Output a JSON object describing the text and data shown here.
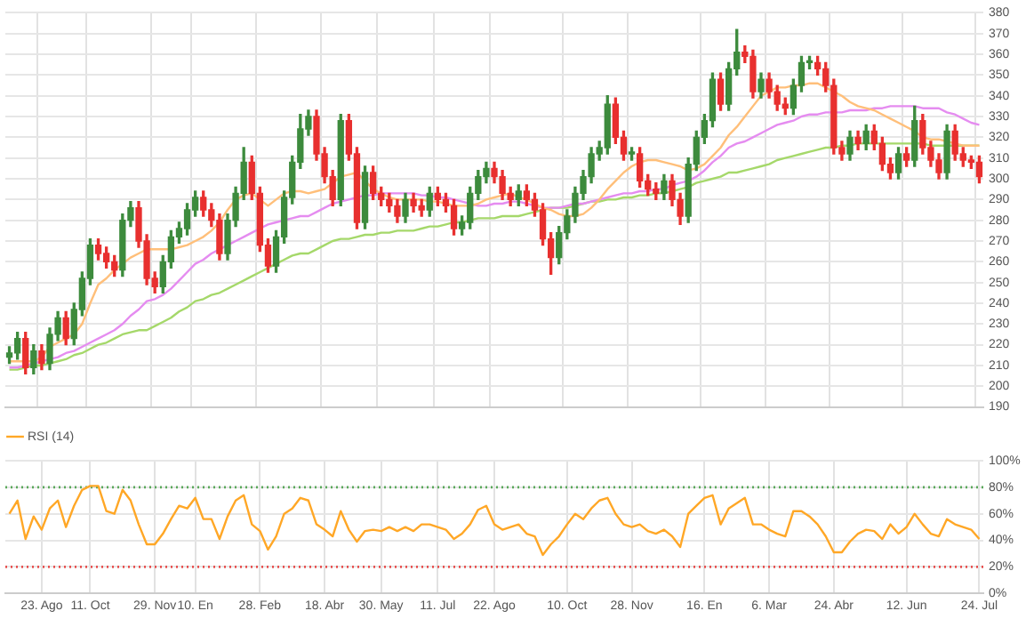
{
  "chart_data": [
    {
      "type": "candlestick",
      "tick_labels": "y",
      "grid": true,
      "marker": "none",
      "ylim": [
        190,
        380
      ],
      "yticks": [
        190,
        200,
        210,
        220,
        230,
        240,
        250,
        260,
        270,
        280,
        290,
        300,
        310,
        320,
        330,
        340,
        350,
        360,
        370,
        380
      ],
      "categories": [
        null,
        null,
        null,
        null,
        null,
        null,
        null,
        null,
        null,
        null,
        null,
        null,
        null,
        null,
        null,
        null,
        null,
        null,
        null,
        null,
        null,
        null,
        null,
        null,
        null,
        null,
        null,
        null,
        null,
        null,
        null,
        null,
        null,
        null,
        null,
        null,
        null,
        null,
        null,
        null,
        null,
        null,
        null,
        null,
        null,
        null,
        null,
        null,
        null,
        null,
        null,
        null,
        null,
        null,
        null,
        null,
        null,
        null,
        null,
        null,
        null,
        null,
        null,
        null,
        null,
        null,
        null,
        null,
        null,
        null,
        null,
        null,
        null,
        null,
        null,
        null,
        null,
        null,
        null,
        null,
        null,
        null,
        null,
        null,
        null,
        null,
        null,
        null,
        null,
        null,
        null,
        null,
        null,
        null,
        null,
        null,
        null,
        null,
        null,
        null,
        null,
        null,
        null,
        null,
        null,
        null,
        null,
        null,
        null,
        null,
        null,
        null,
        null,
        null,
        null,
        null,
        null,
        null,
        null,
        null,
        null
      ],
      "ohlc": [
        [
          214,
          219,
          211,
          216
        ],
        [
          216,
          226,
          213,
          223
        ],
        [
          223,
          226,
          206,
          209
        ],
        [
          209,
          220,
          206,
          217
        ],
        [
          217,
          220,
          208,
          211
        ],
        [
          211,
          228,
          208,
          225
        ],
        [
          225,
          236,
          222,
          233
        ],
        [
          233,
          236,
          220,
          223
        ],
        [
          223,
          240,
          220,
          237
        ],
        [
          237,
          255,
          234,
          252
        ],
        [
          252,
          271,
          249,
          268
        ],
        [
          268,
          271,
          261,
          264
        ],
        [
          264,
          267,
          257,
          260
        ],
        [
          260,
          263,
          253,
          256
        ],
        [
          256,
          283,
          253,
          280
        ],
        [
          280,
          289,
          277,
          286
        ],
        [
          286,
          289,
          267,
          270
        ],
        [
          270,
          273,
          249,
          252
        ],
        [
          252,
          255,
          245,
          248
        ],
        [
          248,
          263,
          245,
          260
        ],
        [
          260,
          275,
          257,
          272
        ],
        [
          272,
          279,
          269,
          276
        ],
        [
          276,
          288,
          273,
          285
        ],
        [
          285,
          294,
          282,
          291
        ],
        [
          291,
          294,
          282,
          285
        ],
        [
          285,
          288,
          277,
          280
        ],
        [
          280,
          283,
          261,
          264
        ],
        [
          264,
          283,
          261,
          280
        ],
        [
          280,
          296,
          277,
          293
        ],
        [
          293,
          315,
          290,
          308
        ],
        [
          308,
          311,
          290,
          293
        ],
        [
          293,
          296,
          265,
          268
        ],
        [
          268,
          271,
          255,
          258
        ],
        [
          258,
          275,
          255,
          272
        ],
        [
          272,
          294,
          269,
          291
        ],
        [
          291,
          311,
          288,
          308
        ],
        [
          308,
          331,
          305,
          324
        ],
        [
          324,
          333,
          321,
          330
        ],
        [
          330,
          333,
          309,
          312
        ],
        [
          312,
          315,
          298,
          301
        ],
        [
          301,
          304,
          287,
          290
        ],
        [
          290,
          331,
          287,
          328
        ],
        [
          328,
          331,
          309,
          312
        ],
        [
          312,
          315,
          276,
          279
        ],
        [
          279,
          306,
          276,
          303
        ],
        [
          303,
          306,
          290,
          293
        ],
        [
          293,
          296,
          287,
          290
        ],
        [
          290,
          293,
          284,
          287
        ],
        [
          287,
          290,
          279,
          282
        ],
        [
          282,
          293,
          279,
          290
        ],
        [
          290,
          293,
          284,
          287
        ],
        [
          287,
          290,
          282,
          285
        ],
        [
          285,
          296,
          282,
          293
        ],
        [
          293,
          296,
          287,
          290
        ],
        [
          290,
          293,
          284,
          287
        ],
        [
          287,
          290,
          273,
          276
        ],
        [
          276,
          282,
          273,
          279
        ],
        [
          279,
          296,
          276,
          293
        ],
        [
          293,
          304,
          290,
          301
        ],
        [
          301,
          308,
          298,
          305
        ],
        [
          305,
          308,
          298,
          301
        ],
        [
          301,
          304,
          290,
          293
        ],
        [
          293,
          296,
          287,
          290
        ],
        [
          290,
          297,
          287,
          294
        ],
        [
          294,
          297,
          287,
          290
        ],
        [
          290,
          293,
          282,
          285
        ],
        [
          285,
          288,
          268,
          271
        ],
        [
          271,
          274,
          254,
          262
        ],
        [
          262,
          277,
          259,
          274
        ],
        [
          274,
          285,
          271,
          282
        ],
        [
          282,
          296,
          279,
          293
        ],
        [
          293,
          304,
          290,
          301
        ],
        [
          301,
          315,
          298,
          312
        ],
        [
          312,
          318,
          309,
          315
        ],
        [
          315,
          340,
          312,
          336
        ],
        [
          336,
          339,
          317,
          320
        ],
        [
          320,
          323,
          309,
          312
        ],
        [
          312,
          315,
          309,
          312
        ],
        [
          312,
          315,
          296,
          299
        ],
        [
          299,
          302,
          292,
          295
        ],
        [
          295,
          298,
          290,
          293
        ],
        [
          293,
          302,
          290,
          299
        ],
        [
          299,
          302,
          287,
          290
        ],
        [
          290,
          293,
          278,
          282
        ],
        [
          282,
          310,
          279,
          307
        ],
        [
          307,
          323,
          304,
          320
        ],
        [
          320,
          331,
          317,
          328
        ],
        [
          328,
          351,
          325,
          348
        ],
        [
          348,
          351,
          333,
          336
        ],
        [
          336,
          356,
          333,
          353
        ],
        [
          353,
          372,
          350,
          361
        ],
        [
          361,
          364,
          356,
          359
        ],
        [
          359,
          362,
          339,
          342
        ],
        [
          342,
          351,
          339,
          348
        ],
        [
          348,
          351,
          339,
          342
        ],
        [
          342,
          345,
          333,
          336
        ],
        [
          336,
          339,
          331,
          334
        ],
        [
          334,
          348,
          331,
          345
        ],
        [
          345,
          359,
          342,
          356
        ],
        [
          356,
          359,
          353,
          356
        ],
        [
          356,
          359,
          350,
          353
        ],
        [
          353,
          356,
          342,
          345
        ],
        [
          345,
          348,
          312,
          315
        ],
        [
          315,
          318,
          309,
          312
        ],
        [
          312,
          323,
          309,
          320
        ],
        [
          320,
          323,
          314,
          317
        ],
        [
          317,
          326,
          314,
          323
        ],
        [
          323,
          326,
          314,
          317
        ],
        [
          317,
          320,
          304,
          307
        ],
        [
          307,
          310,
          300,
          303
        ],
        [
          303,
          315,
          300,
          312
        ],
        [
          312,
          315,
          306,
          309
        ],
        [
          309,
          335,
          306,
          328
        ],
        [
          328,
          331,
          312,
          315
        ],
        [
          315,
          318,
          306,
          309
        ],
        [
          309,
          312,
          300,
          303
        ],
        [
          303,
          326,
          300,
          323
        ],
        [
          323,
          326,
          309,
          312
        ],
        [
          312,
          315,
          306,
          309
        ],
        [
          309,
          311,
          305,
          308
        ],
        [
          308,
          311,
          298,
          301
        ]
      ],
      "colors": [
        "#3d8b3d",
        "#3d8b3d",
        "#e8302f",
        "#3d8b3d",
        "#e8302f",
        "#3d8b3d",
        "#3d8b3d",
        "#e8302f",
        "#3d8b3d",
        "#3d8b3d",
        "#3d8b3d",
        "#e8302f",
        "#e8302f",
        "#e8302f",
        "#3d8b3d",
        "#3d8b3d",
        "#e8302f",
        "#e8302f",
        "#e8302f",
        "#3d8b3d",
        "#3d8b3d",
        "#3d8b3d",
        "#3d8b3d",
        "#3d8b3d",
        "#e8302f",
        "#e8302f",
        "#e8302f",
        "#3d8b3d",
        "#3d8b3d",
        "#3d8b3d",
        "#e8302f",
        "#e8302f",
        "#e8302f",
        "#3d8b3d",
        "#3d8b3d",
        "#3d8b3d",
        "#3d8b3d",
        "#3d8b3d",
        "#e8302f",
        "#e8302f",
        "#e8302f",
        "#3d8b3d",
        "#e8302f",
        "#e8302f",
        "#3d8b3d",
        "#e8302f",
        "#e8302f",
        "#e8302f",
        "#e8302f",
        "#3d8b3d",
        "#e8302f",
        "#e8302f",
        "#3d8b3d",
        "#e8302f",
        "#e8302f",
        "#e8302f",
        "#3d8b3d",
        "#3d8b3d",
        "#3d8b3d",
        "#3d8b3d",
        "#e8302f",
        "#e8302f",
        "#e8302f",
        "#3d8b3d",
        "#e8302f",
        "#e8302f",
        "#e8302f",
        "#e8302f",
        "#3d8b3d",
        "#3d8b3d",
        "#3d8b3d",
        "#3d8b3d",
        "#3d8b3d",
        "#3d8b3d",
        "#3d8b3d",
        "#e8302f",
        "#e8302f",
        "#3d8b3d",
        "#e8302f",
        "#e8302f",
        "#e8302f",
        "#3d8b3d",
        "#e8302f",
        "#e8302f",
        "#3d8b3d",
        "#3d8b3d",
        "#3d8b3d",
        "#3d8b3d",
        "#e8302f",
        "#3d8b3d",
        "#3d8b3d",
        "#e8302f",
        "#e8302f",
        "#3d8b3d",
        "#e8302f",
        "#e8302f",
        "#e8302f",
        "#3d8b3d",
        "#3d8b3d",
        "#3d8b3d",
        "#e8302f",
        "#e8302f",
        "#e8302f",
        "#e8302f",
        "#3d8b3d",
        "#e8302f",
        "#3d8b3d",
        "#e8302f",
        "#e8302f",
        "#e8302f",
        "#3d8b3d",
        "#e8302f",
        "#3d8b3d",
        "#e8302f",
        "#e8302f",
        "#e8302f",
        "#3d8b3d",
        "#e8302f",
        "#e8302f",
        "#e8302f",
        "#e8302f"
      ],
      "series": [
        {
          "type": "line",
          "color": "#ffbf7a",
          "values": [
            212,
            212,
            212,
            212,
            214,
            219,
            221,
            223,
            225,
            230,
            240,
            249,
            252,
            256,
            259,
            262,
            264,
            266,
            266,
            266,
            266,
            267,
            268,
            270,
            272,
            275,
            279,
            285,
            290,
            292,
            293,
            290,
            287,
            290,
            293,
            294,
            294,
            293,
            294,
            295,
            298,
            301,
            302,
            303,
            299,
            295,
            293,
            291,
            290,
            290,
            290,
            290,
            289,
            289,
            288,
            287,
            287,
            287,
            288,
            290,
            291,
            292,
            293,
            291,
            290,
            288,
            286,
            285,
            283,
            282,
            282,
            283,
            286,
            290,
            295,
            299,
            303,
            306,
            308,
            309,
            309,
            308,
            307,
            306,
            304,
            305,
            307,
            311,
            315,
            321,
            325,
            330,
            335,
            340,
            342,
            344,
            344,
            345,
            345,
            346,
            346,
            344,
            342,
            340,
            337,
            335,
            334,
            333,
            331,
            329,
            327,
            325,
            323,
            320,
            319,
            319,
            318,
            317,
            316,
            316,
            316
          ]
        },
        {
          "type": "line",
          "color": "#e58cf0",
          "values": [
            209,
            209,
            210,
            211,
            212,
            213,
            214,
            216,
            217,
            219,
            221,
            223,
            225,
            227,
            230,
            234,
            237,
            241,
            242,
            244,
            247,
            251,
            255,
            259,
            261,
            264,
            266,
            268,
            270,
            272,
            274,
            276,
            278,
            279,
            280,
            281,
            282,
            282,
            284,
            286,
            288,
            289,
            290,
            291,
            292,
            292,
            293,
            293,
            293,
            293,
            293,
            292,
            292,
            291,
            291,
            290,
            289,
            288,
            287,
            287,
            288,
            288,
            289,
            289,
            288,
            287,
            286,
            286,
            286,
            287,
            288,
            288,
            289,
            290,
            291,
            292,
            293,
            293,
            294,
            294,
            295,
            295,
            297,
            298,
            299,
            301,
            304,
            308,
            311,
            315,
            317,
            318,
            320,
            322,
            324,
            326,
            327,
            328,
            330,
            331,
            331,
            332,
            332,
            332,
            333,
            333,
            333,
            334,
            334,
            335,
            335,
            335,
            335,
            334,
            334,
            334,
            332,
            331,
            329,
            327,
            326
          ]
        },
        {
          "type": "line",
          "color": "#a5d86a",
          "values": [
            208,
            208,
            209,
            210,
            210,
            211,
            212,
            213,
            215,
            216,
            218,
            220,
            221,
            223,
            225,
            226,
            227,
            227,
            229,
            231,
            233,
            236,
            238,
            241,
            242,
            244,
            245,
            247,
            249,
            251,
            253,
            255,
            257,
            259,
            261,
            263,
            264,
            264,
            266,
            268,
            270,
            271,
            271,
            272,
            273,
            273,
            274,
            274,
            275,
            275,
            275,
            276,
            277,
            277,
            278,
            279,
            279,
            280,
            281,
            281,
            281,
            282,
            282,
            282,
            283,
            284,
            285,
            286,
            286,
            286,
            287,
            288,
            289,
            289,
            290,
            290,
            291,
            291,
            292,
            292,
            293,
            293,
            294,
            295,
            296,
            298,
            299,
            300,
            301,
            303,
            303,
            304,
            305,
            306,
            307,
            309,
            310,
            311,
            312,
            313,
            314,
            315,
            315,
            316,
            316,
            317,
            317,
            317,
            317,
            317,
            317,
            317,
            317,
            317,
            316,
            316,
            316,
            316,
            316,
            316,
            316
          ]
        }
      ]
    },
    {
      "type": "line",
      "grid": true,
      "marker": "none",
      "legend": "top left",
      "ylim": [
        0,
        100
      ],
      "yticks": [
        {
          "value": 0,
          "label": "0%"
        },
        {
          "value": 20,
          "label": "20%"
        },
        {
          "value": 40,
          "label": "40%"
        },
        {
          "value": 60,
          "label": "60%"
        },
        {
          "value": 80,
          "label": "80%"
        },
        {
          "value": 100,
          "label": "100%"
        }
      ],
      "categories": [
        null,
        null,
        null,
        null,
        "23. Ago",
        null,
        null,
        null,
        null,
        null,
        "11. Oct",
        null,
        null,
        null,
        null,
        null,
        null,
        null,
        "29. Nov",
        null,
        null,
        null,
        null,
        "10. En",
        null,
        null,
        null,
        null,
        null,
        null,
        null,
        "28. Feb",
        null,
        null,
        null,
        null,
        null,
        null,
        null,
        "18. Abr",
        null,
        null,
        null,
        null,
        null,
        null,
        "30. May",
        null,
        null,
        null,
        null,
        null,
        null,
        "11. Jul",
        null,
        null,
        null,
        null,
        null,
        null,
        "22. Ago",
        null,
        null,
        null,
        null,
        null,
        null,
        null,
        null,
        "10. Oct",
        null,
        null,
        null,
        null,
        null,
        null,
        null,
        "28. Nov",
        null,
        null,
        null,
        null,
        null,
        null,
        null,
        null,
        "16. En",
        null,
        null,
        null,
        null,
        null,
        null,
        null,
        "6. Mar",
        null,
        null,
        null,
        null,
        null,
        null,
        null,
        "24. Abr",
        null,
        null,
        null,
        null,
        null,
        null,
        null,
        null,
        "12. Jun",
        null,
        null,
        null,
        null,
        null,
        null,
        null,
        null,
        "24. Jul"
      ],
      "ref_lines": [
        {
          "axis": "y",
          "value": 80,
          "color": "#5aa85a",
          "line_style": "dotted"
        },
        {
          "axis": "y",
          "value": 20,
          "color": "#e8504f",
          "line_style": "dotted"
        }
      ],
      "series": [
        {
          "name": "RSI (14)",
          "color": "#ffa726",
          "values": [
            60,
            70,
            41,
            58,
            48,
            64,
            70,
            50,
            66,
            78,
            81,
            81,
            62,
            60,
            78,
            70,
            52,
            37,
            37,
            45,
            56,
            66,
            64,
            72,
            56,
            56,
            41,
            58,
            70,
            74,
            52,
            47,
            33,
            43,
            60,
            64,
            72,
            70,
            52,
            48,
            43,
            62,
            48,
            39,
            47,
            48,
            47,
            50,
            47,
            50,
            47,
            52,
            52,
            50,
            48,
            41,
            45,
            52,
            63,
            66,
            52,
            48,
            50,
            52,
            45,
            43,
            29,
            37,
            43,
            52,
            60,
            56,
            64,
            70,
            72,
            60,
            52,
            50,
            52,
            47,
            45,
            48,
            43,
            35,
            60,
            66,
            72,
            74,
            52,
            64,
            68,
            72,
            52,
            52,
            48,
            45,
            43,
            62,
            62,
            58,
            52,
            43,
            31,
            31,
            39,
            45,
            48,
            47,
            41,
            52,
            45,
            50,
            60,
            52,
            45,
            43,
            56,
            52,
            50,
            48,
            41
          ]
        }
      ]
    }
  ]
}
